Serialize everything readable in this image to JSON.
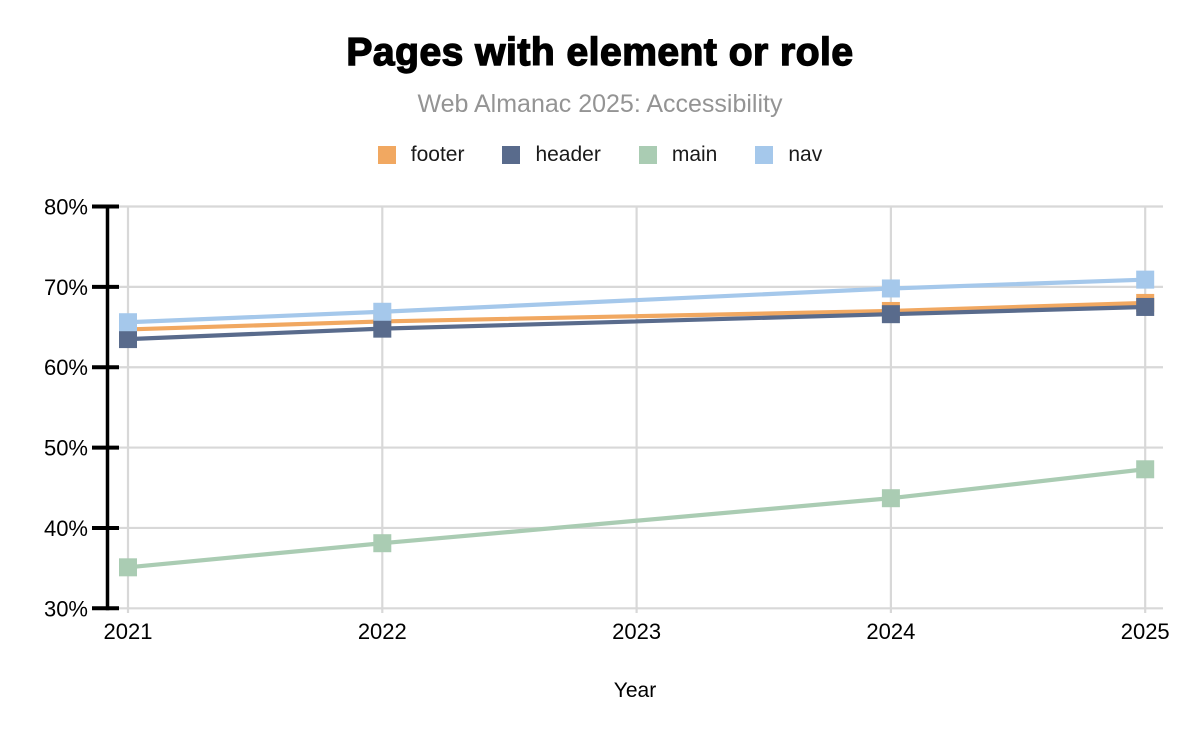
{
  "header": {
    "title": "Pages with element or role",
    "subtitle": "Web Almanac 2025: Accessibility"
  },
  "chart_data": {
    "type": "line",
    "title": "Pages with element or role",
    "subtitle": "Web Almanac 2025: Accessibility",
    "xlabel": "Year",
    "ylabel": "",
    "x": [
      2021,
      2022,
      2024,
      2025
    ],
    "xticks": [
      2021,
      2022,
      2023,
      2024,
      2025
    ],
    "ylim": [
      30,
      80
    ],
    "ytick_step": 10,
    "ytick_suffix": "%",
    "grid": true,
    "legend_position": "top",
    "marker": "square",
    "series": [
      {
        "name": "footer",
        "color": "#F1A861",
        "values": [
          64.7,
          65.7,
          67.0,
          68.0
        ]
      },
      {
        "name": "header",
        "color": "#596B8C",
        "values": [
          63.5,
          64.8,
          66.6,
          67.5
        ]
      },
      {
        "name": "main",
        "color": "#AACCB3",
        "values": [
          35.1,
          38.1,
          43.7,
          47.3
        ]
      },
      {
        "name": "nav",
        "color": "#A5C8EB",
        "values": [
          65.6,
          66.9,
          69.8,
          70.9
        ]
      }
    ]
  },
  "colors": {
    "background": "#FFFFFF",
    "grid": "#D8D8D8",
    "axis": "#000000",
    "title_text": "#000000",
    "subtitle_text": "#949494",
    "legend_text": "#1A1A1A",
    "tick_text": "#000000"
  }
}
